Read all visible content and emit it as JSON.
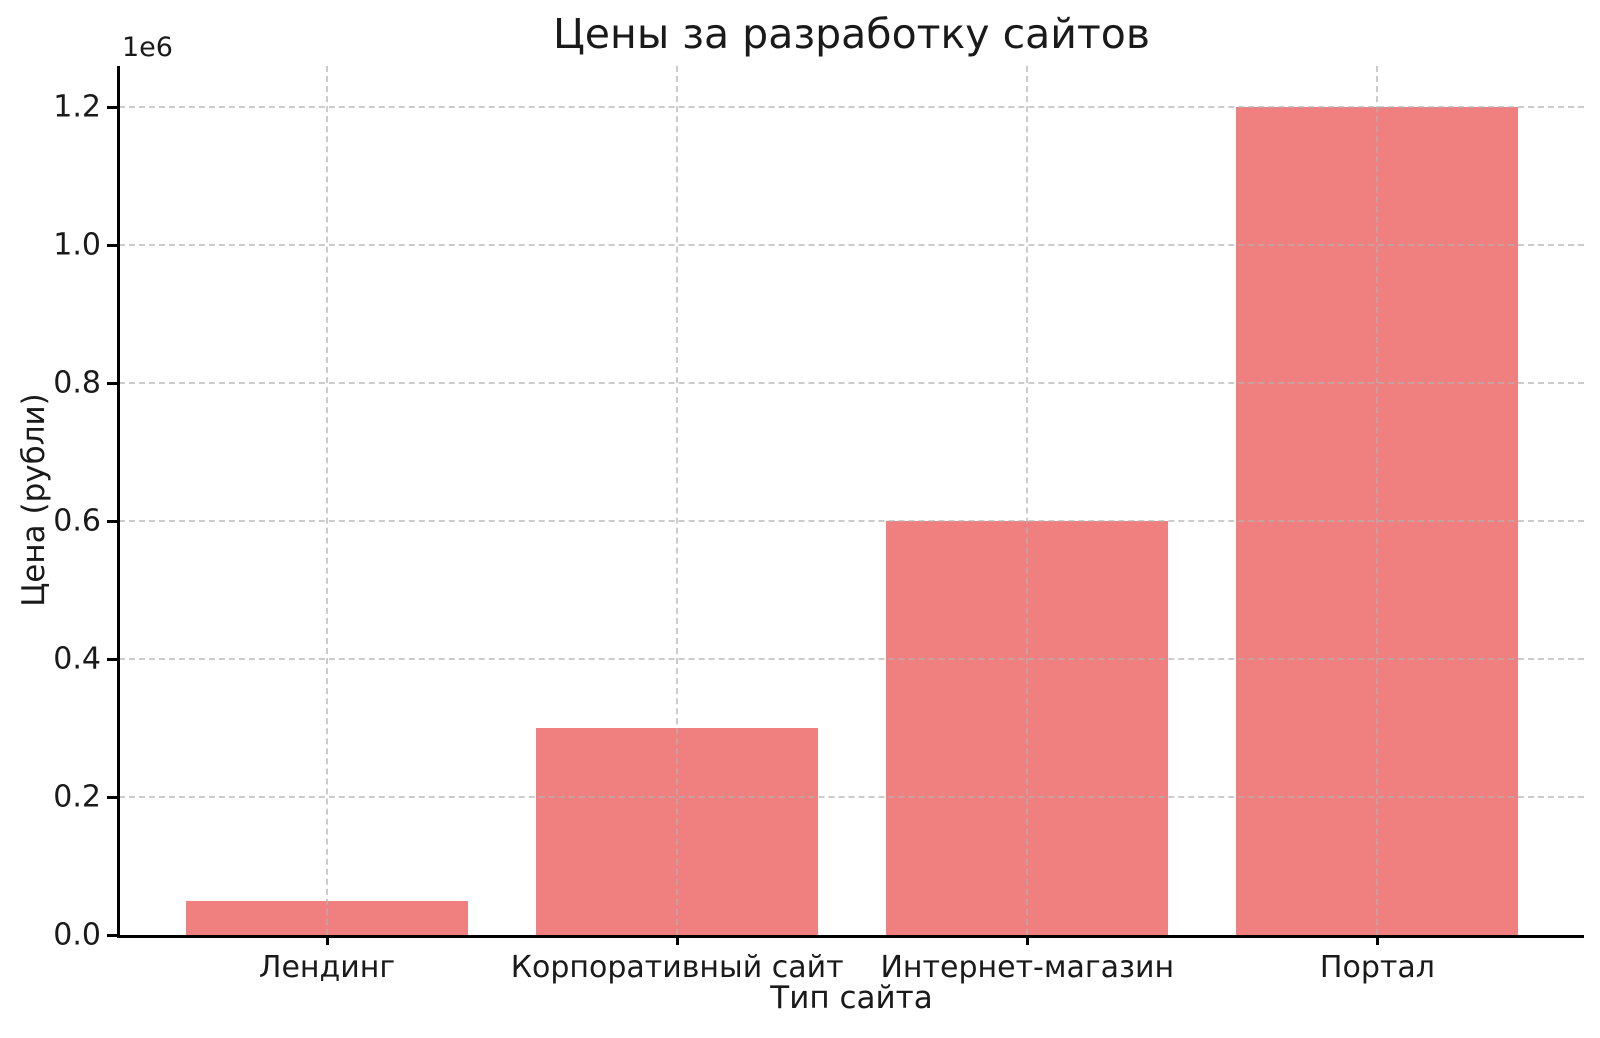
{
  "chart_data": {
    "type": "bar",
    "title": "Цены за разработку сайтов",
    "xlabel": "Тип сайта",
    "ylabel": "Цена (рубли)",
    "categories": [
      "Лендинг",
      "Корпоративный сайт",
      "Интернет-магазин",
      "Портал"
    ],
    "values": [
      50000,
      300000,
      600000,
      1200000
    ],
    "bar_color": "#F08080",
    "ylim": [
      0,
      1260000
    ],
    "yticks": [
      0,
      200000,
      400000,
      600000,
      800000,
      1000000,
      1200000
    ],
    "ytick_labels": [
      "0.0",
      "0.2",
      "0.4",
      "0.6",
      "0.8",
      "1.0",
      "1.2"
    ],
    "offset_text": "1e6",
    "grid": "dashed, horizontal and vertical, drawn over bars",
    "legend": "none",
    "spines": [
      "left",
      "bottom"
    ]
  }
}
